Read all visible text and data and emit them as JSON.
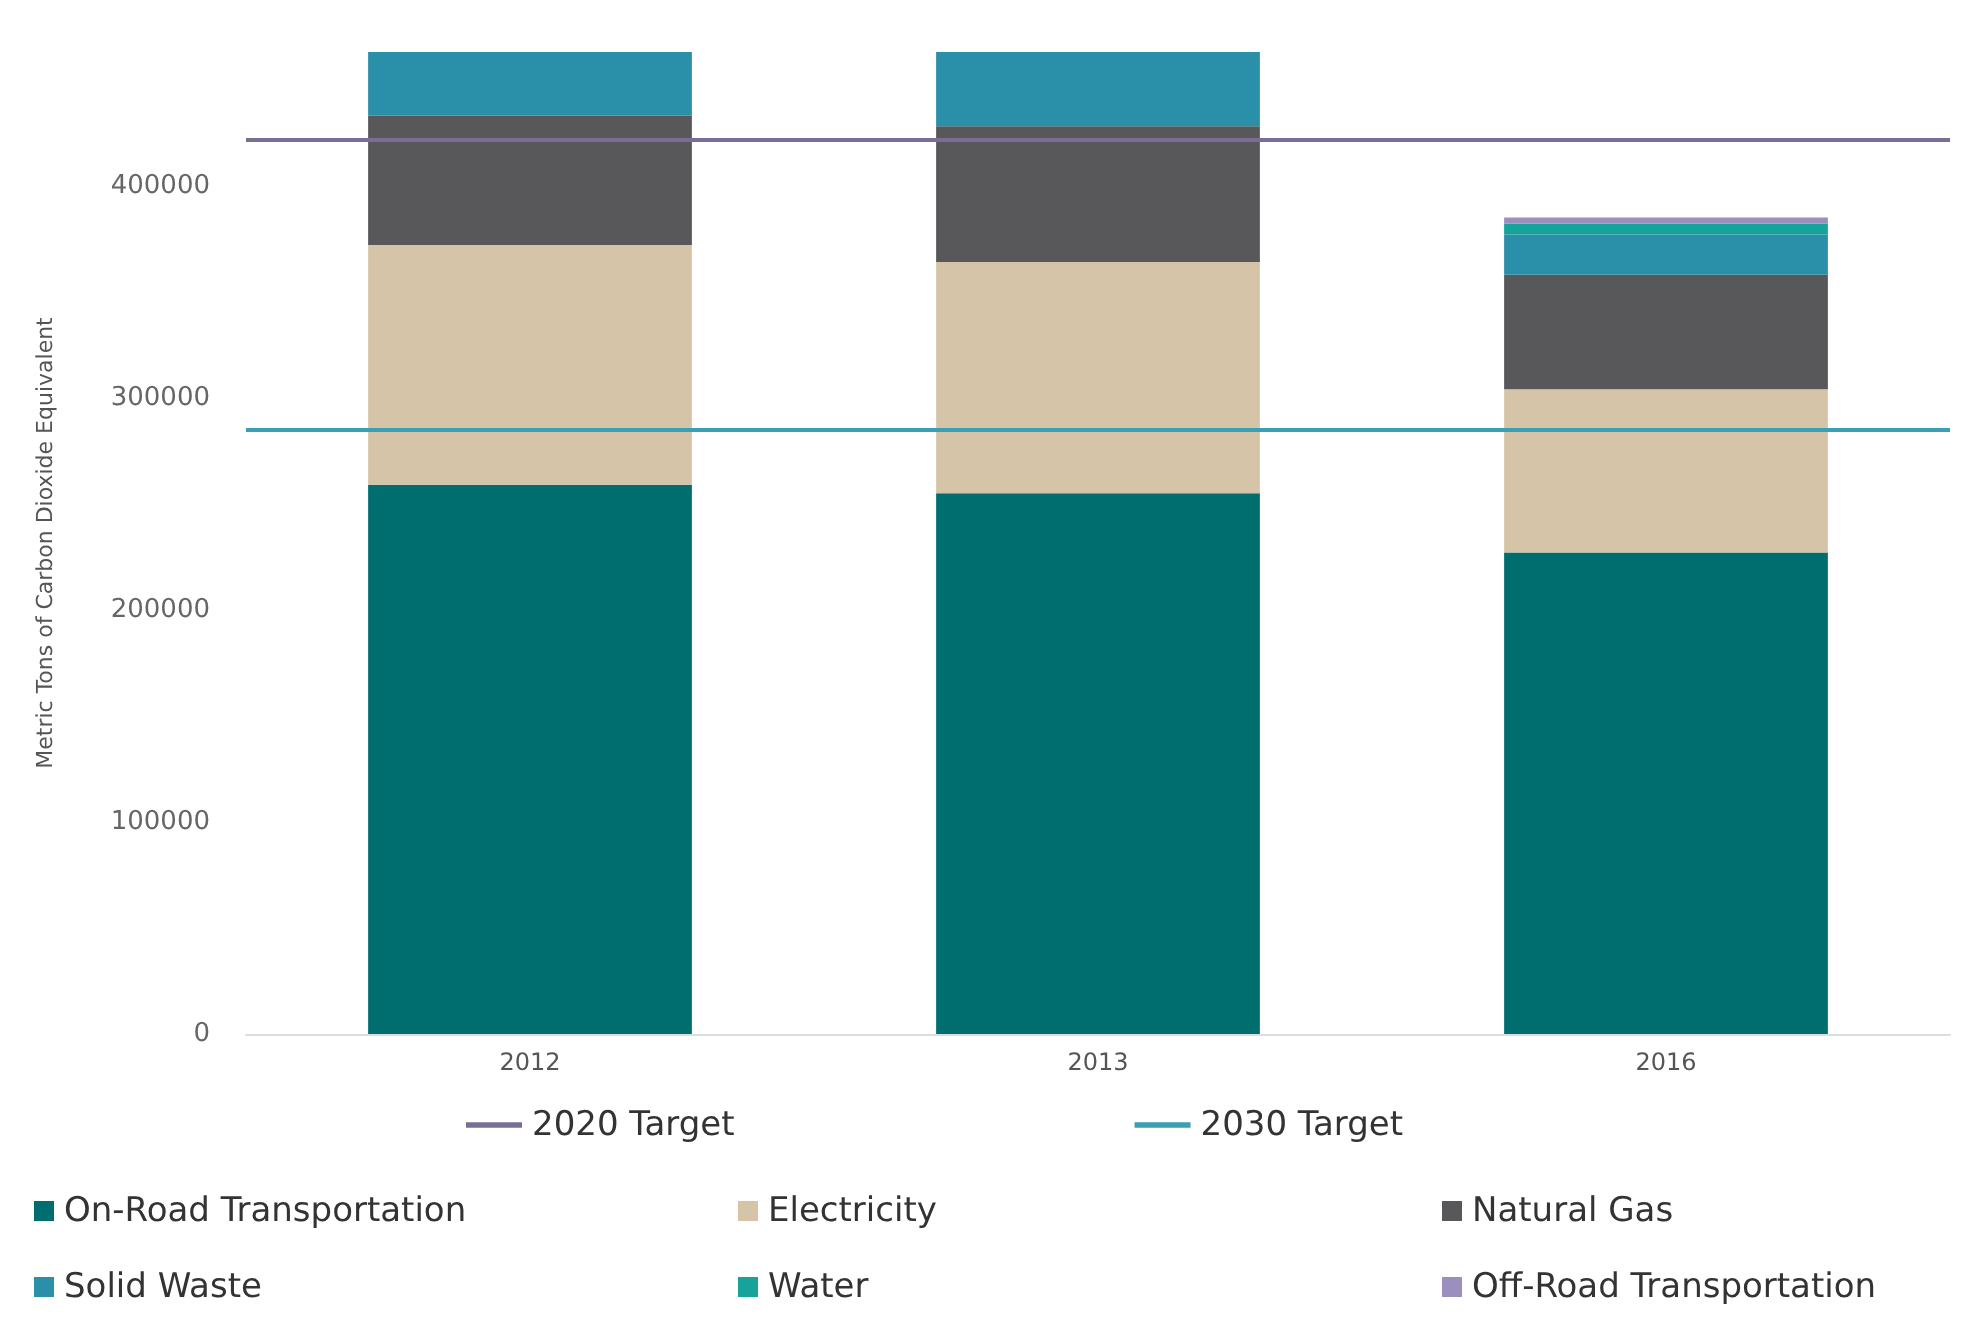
{
  "chart_data": {
    "type": "bar",
    "stacked": true,
    "ylabel": "Metric Tons of Carbon Dioxide Equivalent",
    "categories": [
      "2012",
      "2013",
      "2016"
    ],
    "series": [
      {
        "name": "On-Road Transportation",
        "color": "#006e6e",
        "values": [
          259000,
          255000,
          227000
        ]
      },
      {
        "name": "Electricity",
        "color": "#d6c4a8",
        "values": [
          113000,
          109000,
          77000
        ]
      },
      {
        "name": "Natural Gas",
        "color": "#58585a",
        "values": [
          61000,
          64000,
          54000
        ]
      },
      {
        "name": "Solid Waste",
        "color": "#2a8fa8",
        "values": [
          30000,
          35000,
          19000
        ]
      },
      {
        "name": "Water",
        "color": "#15a39a",
        "values": [
          null,
          null,
          5000
        ]
      },
      {
        "name": "Off-Road Transportation",
        "color": "#9b8fc0",
        "values": [
          null,
          null,
          3000
        ]
      }
    ],
    "ylim": [
      0,
      463000
    ],
    "yticks": [
      0,
      100000,
      200000,
      300000,
      400000
    ],
    "grid": false,
    "legend": "bottom",
    "ref_lines": [
      {
        "axis": "y",
        "value": 422000,
        "label": "2020 Target",
        "color": "#7a6e96"
      },
      {
        "axis": "y",
        "value": 285000,
        "label": "2030 Target",
        "color": "#3a9fb5"
      }
    ]
  }
}
